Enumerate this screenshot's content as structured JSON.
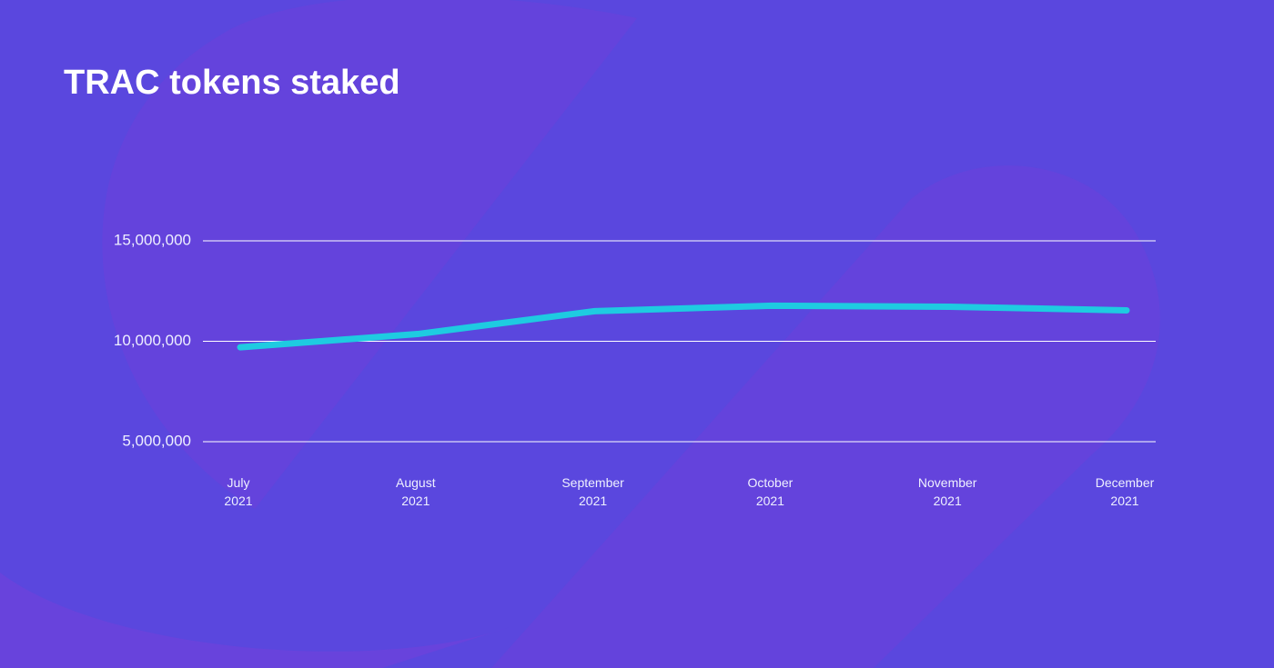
{
  "chart_data": {
    "type": "line",
    "title": "TRAC tokens staked",
    "categories": [
      "July 2021",
      "August 2021",
      "September 2021",
      "October 2021",
      "November 2021",
      "December 2021"
    ],
    "series": [
      {
        "name": "TRAC tokens staked",
        "color": "#1ecbe1",
        "values": [
          9700000,
          10360000,
          11500000,
          11770000,
          11720000,
          11540000
        ]
      }
    ],
    "ylim": [
      5000000,
      15000000
    ],
    "yticks": [
      {
        "value": 5000000,
        "label": "5,000,000"
      },
      {
        "value": 10000000,
        "label": "10,000,000"
      },
      {
        "value": 15000000,
        "label": "15,000,000"
      }
    ],
    "grid": true
  }
}
